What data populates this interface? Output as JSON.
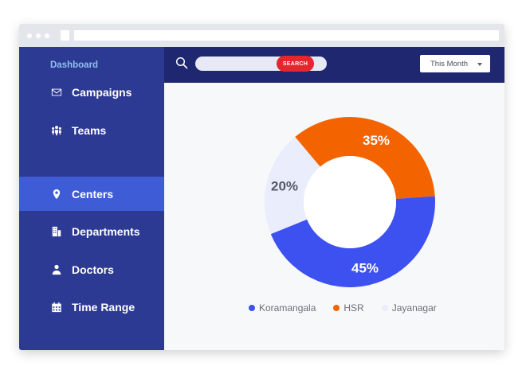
{
  "sidebar": {
    "title": "Dashboard",
    "items": [
      {
        "label": "Campaigns",
        "icon": "envelope-icon",
        "active": false
      },
      {
        "label": "Teams",
        "icon": "team-icon",
        "active": false
      },
      {
        "label": "Centers",
        "icon": "location-pin-icon",
        "active": true
      },
      {
        "label": "Departments",
        "icon": "building-icon",
        "active": false
      },
      {
        "label": "Doctors",
        "icon": "doctor-icon",
        "active": false
      },
      {
        "label": "Time Range",
        "icon": "calendar-icon",
        "active": false
      }
    ]
  },
  "topbar": {
    "search_placeholder": "",
    "search_button": "SEARCH",
    "period_select": "This Month"
  },
  "colors": {
    "sidebar": "#2d3a93",
    "sidebar_active": "#3d5cd6",
    "topbar": "#1e2770",
    "search_button": "#e5262d"
  },
  "chart_data": {
    "type": "pie",
    "title": "",
    "slices": [
      {
        "label": "Koramangala",
        "value": 45,
        "display": "45%",
        "color": "#3d50f0"
      },
      {
        "label": "HSR",
        "value": 35,
        "display": "35%",
        "color": "#f36400"
      },
      {
        "label": "Jayanagar",
        "value": 20,
        "display": "20%",
        "color": "#e9edfc"
      }
    ],
    "donut": true,
    "legend_position": "bottom"
  }
}
